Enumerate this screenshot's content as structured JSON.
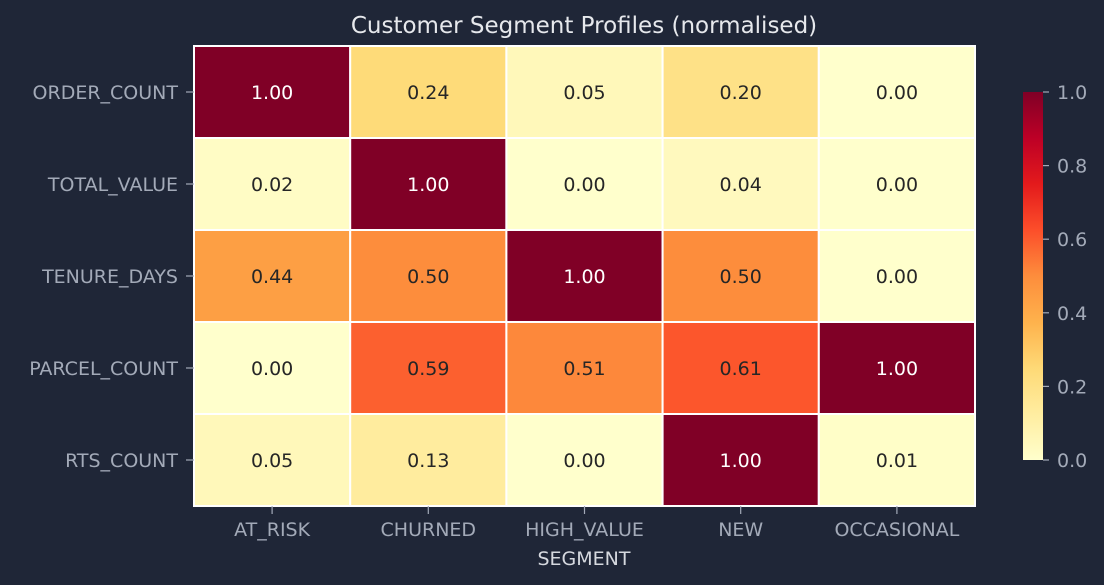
{
  "chart_data": {
    "type": "heatmap",
    "title": "Customer Segment Profiles (normalised)",
    "xlabel": "SEGMENT",
    "ylabel": "",
    "x_categories": [
      "AT_RISK",
      "CHURNED",
      "HIGH_VALUE",
      "NEW",
      "OCCASIONAL"
    ],
    "y_categories": [
      "ORDER_COUNT",
      "TOTAL_VALUE",
      "TENURE_DAYS",
      "PARCEL_COUNT",
      "RTS_COUNT"
    ],
    "values": [
      [
        1.0,
        0.24,
        0.05,
        0.2,
        0.0
      ],
      [
        0.02,
        1.0,
        0.0,
        0.04,
        0.0
      ],
      [
        0.44,
        0.5,
        1.0,
        0.5,
        0.0
      ],
      [
        0.0,
        0.59,
        0.51,
        0.61,
        1.0
      ],
      [
        0.05,
        0.13,
        0.0,
        1.0,
        0.01
      ]
    ],
    "value_format": "0.00",
    "colorbar": {
      "range": [
        0.0,
        1.0
      ],
      "ticks": [
        "0.0",
        "0.2",
        "0.4",
        "0.6",
        "0.8",
        "1.0"
      ],
      "placement": "right",
      "colormap": [
        "#ffffcc",
        "#ffeda0",
        "#fed976",
        "#feb24c",
        "#fd8d3c",
        "#fc4e2a",
        "#e31a1c",
        "#bd0026",
        "#800026"
      ]
    },
    "grid": false
  }
}
